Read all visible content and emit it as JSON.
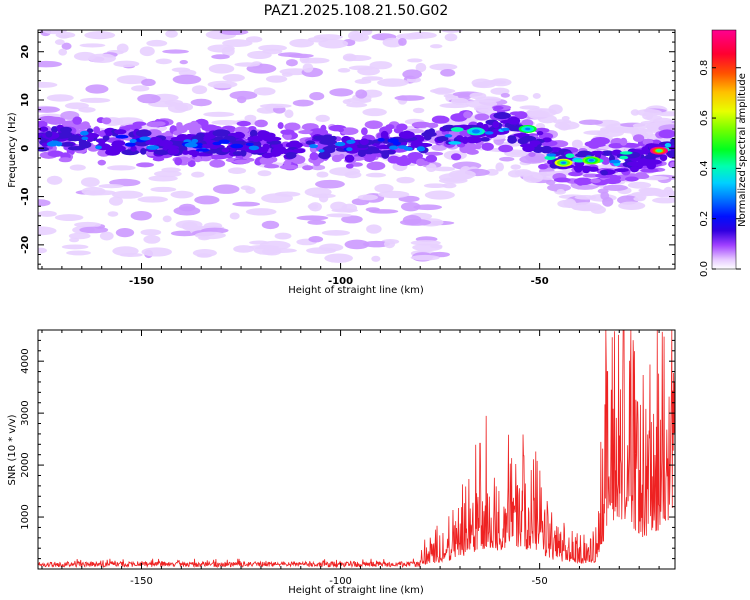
{
  "figure": {
    "title": "PAZ1.2025.108.21.50.G02"
  },
  "chart_data": [
    {
      "type": "heatmap",
      "title": "PAZ1.2025.108.21.50.G02",
      "xlabel": "Height of straight line (km)",
      "ylabel": "Frequency (Hz)",
      "xlim": [
        -176,
        -16
      ],
      "ylim": [
        -25,
        24.5
      ],
      "x_ticks": [
        -150,
        -100,
        -50
      ],
      "y_ticks": [
        -20,
        -10,
        0,
        10,
        20
      ],
      "colorbar": {
        "label": "Normalized spectral amplitude",
        "range": [
          0,
          0.95
        ],
        "ticks": [
          0.0,
          0.2,
          0.4,
          0.6,
          0.8
        ],
        "colors": [
          "#ffffff",
          "#c080ff",
          "#6000e0",
          "#0000ff",
          "#00c0ff",
          "#00ffc0",
          "#00ff00",
          "#c0ff00",
          "#ffd000",
          "#ff6000",
          "#ff0030",
          "#ff00a0"
        ]
      },
      "ridge": {
        "note": "dominant frequency band vs height (approx.)",
        "points": [
          {
            "x": -170,
            "y": 2
          },
          {
            "x": -150,
            "y": 1
          },
          {
            "x": -125,
            "y": 1
          },
          {
            "x": -100,
            "y": 0
          },
          {
            "x": -80,
            "y": 1
          },
          {
            "x": -68,
            "y": 3
          },
          {
            "x": -60,
            "y": 5
          },
          {
            "x": -50,
            "y": 1
          },
          {
            "x": -44,
            "y": -3
          },
          {
            "x": -35,
            "y": -3
          },
          {
            "x": -25,
            "y": -2
          },
          {
            "x": -16,
            "y": -0.5
          }
        ]
      },
      "peaks": [
        {
          "x": -66,
          "y": 3.5,
          "amplitude": 0.35
        },
        {
          "x": -53,
          "y": 4,
          "amplitude": 0.45
        },
        {
          "x": -44,
          "y": -3,
          "amplitude": 0.6
        },
        {
          "x": -37,
          "y": -2.5,
          "amplitude": 0.5
        },
        {
          "x": -20,
          "y": -0.5,
          "amplitude": 0.95
        }
      ]
    },
    {
      "type": "line",
      "xlabel": "Height of straight line (km)",
      "ylabel": "SNR (10 * v/v)",
      "xlim": [
        -176,
        -16
      ],
      "ylim": [
        0,
        4600
      ],
      "x_ticks": [
        -150,
        -100,
        -50
      ],
      "y_ticks": [
        1000,
        2000,
        3000,
        4000
      ],
      "color": "#ee2222",
      "envelope": {
        "x": [
          -176,
          -160,
          -140,
          -120,
          -100,
          -85,
          -78,
          -72,
          -68,
          -64,
          -60,
          -56,
          -52,
          -48,
          -44,
          -40,
          -36,
          -34,
          -32,
          -30,
          -28,
          -26,
          -24,
          -20,
          -16
        ],
        "y": [
          130,
          130,
          130,
          130,
          120,
          140,
          250,
          500,
          800,
          1100,
          1000,
          1200,
          1000,
          600,
          350,
          300,
          350,
          1500,
          2500,
          2800,
          2400,
          1800,
          1600,
          2000,
          3200
        ]
      },
      "peaks": [
        {
          "x": -65,
          "y": 2420
        },
        {
          "x": -54,
          "y": 2180
        },
        {
          "x": -33,
          "y": 3800
        },
        {
          "x": -29,
          "y": 4600
        },
        {
          "x": -16,
          "y": 3600
        }
      ]
    }
  ]
}
